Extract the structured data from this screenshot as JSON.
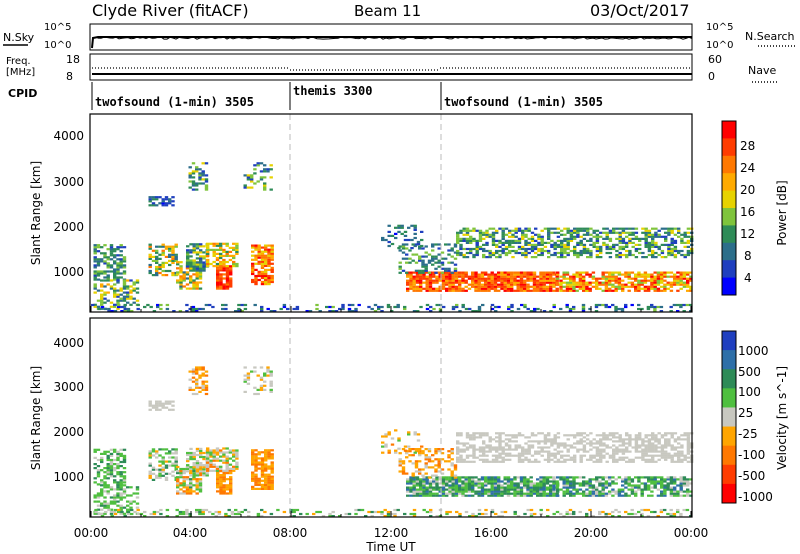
{
  "header": {
    "station": "Clyde River (fitACF)",
    "beam": "Beam 11",
    "date": "03/Oct/2017"
  },
  "noise_panel": {
    "left_label": "N.Sky",
    "left_ticks": [
      "10^5",
      "10^0"
    ],
    "right_ticks": [
      "10^5",
      "10^0"
    ],
    "right_label": "N.Search"
  },
  "freq_panel": {
    "label_top": "Freq.",
    "label_unit": "[MHz]",
    "left_ticks": [
      "18",
      "8"
    ],
    "right_ticks": [
      "60",
      "0"
    ],
    "right_label": "Nave"
  },
  "cpid_panel": {
    "label": "CPID",
    "segments": [
      {
        "name": "twofsound (1-min) 3505"
      },
      {
        "name": "themis 3300"
      },
      {
        "name": "twofsound (1-min) 3505"
      }
    ]
  },
  "time_axis": {
    "label": "Time UT",
    "ticks": [
      "00:00",
      "04:00",
      "08:00",
      "12:00",
      "16:00",
      "20:00",
      "00:00"
    ]
  },
  "chart_data": [
    {
      "type": "heatmap",
      "name": "power",
      "ylabel": "Slant Range [km]",
      "ylim": [
        200,
        4600
      ],
      "yticks": [
        "1000",
        "2000",
        "3000",
        "4000"
      ],
      "xlim_hours": [
        0,
        24
      ],
      "colorbar": {
        "label": "Power [dB]",
        "ticks": [
          "28",
          "24",
          "20",
          "16",
          "12",
          "8",
          "4"
        ],
        "colors": [
          "#ff0000",
          "#ff3c00",
          "#ff7800",
          "#ffaa00",
          "#e6d200",
          "#7fc43c",
          "#2e8b57",
          "#2c6e8a",
          "#1f3fbf",
          "#0000ff"
        ]
      },
      "x_dividers_hours": [
        7.9,
        14.0
      ]
    },
    {
      "type": "heatmap",
      "name": "velocity",
      "ylabel": "Slant Range [km]",
      "ylim": [
        200,
        4600
      ],
      "yticks": [
        "1000",
        "2000",
        "3000",
        "4000"
      ],
      "xlim_hours": [
        0,
        24
      ],
      "colorbar": {
        "label": "Velocity [m s^-1]",
        "ticks": [
          "1000",
          "500",
          "100",
          "25",
          "-25",
          "-100",
          "-500",
          "-1000"
        ],
        "colors": [
          "#1f3fbf",
          "#2e6fa8",
          "#2e8b57",
          "#4fbf3f",
          "#c8c8c0",
          "#ffa500",
          "#ff7800",
          "#ff3c00",
          "#ff0000"
        ]
      },
      "x_dividers_hours": [
        7.9,
        14.0
      ]
    }
  ]
}
